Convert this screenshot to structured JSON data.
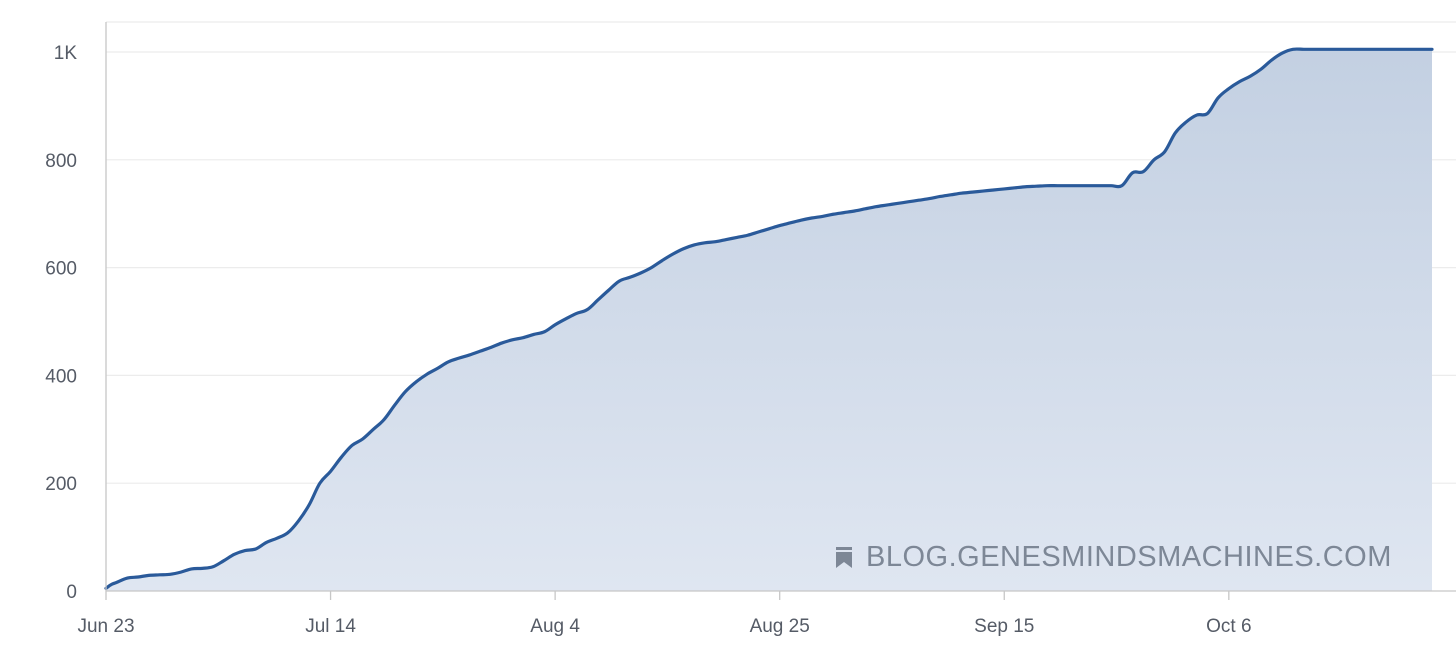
{
  "chart_data": {
    "type": "area",
    "title": "",
    "xlabel": "",
    "ylabel": "",
    "ylim": [
      0,
      1000
    ],
    "y_ticks": [
      0,
      200,
      400,
      600,
      800,
      1000
    ],
    "y_tick_labels": [
      "0",
      "200",
      "400",
      "600",
      "800",
      "1K"
    ],
    "x_ticks": [
      {
        "day": 0,
        "label": "Jun 23"
      },
      {
        "day": 21,
        "label": "Jul 14"
      },
      {
        "day": 42,
        "label": "Aug 4"
      },
      {
        "day": 63,
        "label": "Aug 25"
      },
      {
        "day": 84,
        "label": "Sep 15"
      },
      {
        "day": 105,
        "label": "Oct 6"
      }
    ],
    "xlim": [
      0,
      124
    ],
    "grid": true,
    "colors": {
      "line": "#2a5a9a",
      "fill_top": "#c3d0e2",
      "fill_bottom": "#dfe6f1",
      "grid": "#ececec"
    },
    "series": [
      {
        "x": [
          0,
          0.5,
          1,
          2,
          3,
          4,
          5,
          6,
          7,
          8,
          9,
          10,
          11,
          12,
          13,
          14,
          15,
          16,
          17,
          18,
          19,
          20,
          21,
          22,
          23,
          24,
          25,
          26,
          27,
          28,
          29,
          30,
          31,
          32,
          33,
          34,
          35,
          36,
          37,
          38,
          39,
          40,
          41,
          42,
          43,
          44,
          45,
          46,
          47,
          48,
          49,
          50,
          51,
          52,
          53,
          54,
          55,
          56,
          57,
          58,
          59,
          60,
          61,
          62,
          63,
          64,
          65,
          66,
          67,
          68,
          69,
          70,
          71,
          72,
          73,
          74,
          75,
          76,
          77,
          78,
          79,
          80,
          81,
          82,
          83,
          84,
          85,
          86,
          87,
          88,
          89,
          90,
          91,
          92,
          93,
          94,
          95,
          96,
          97,
          98,
          99,
          100,
          101,
          102,
          103,
          104,
          105,
          106,
          107,
          108,
          109,
          110,
          111,
          112,
          113,
          114,
          115,
          116,
          117,
          118,
          119,
          120,
          121,
          122,
          123,
          124
        ],
        "values": [
          5,
          12,
          16,
          24,
          26,
          29,
          30,
          31,
          35,
          41,
          42,
          45,
          56,
          68,
          75,
          78,
          90,
          98,
          108,
          130,
          160,
          200,
          222,
          248,
          270,
          282,
          300,
          318,
          345,
          370,
          388,
          402,
          413,
          425,
          432,
          438,
          445,
          452,
          460,
          466,
          470,
          476,
          481,
          494,
          505,
          515,
          522,
          540,
          558,
          575,
          582,
          590,
          600,
          613,
          625,
          635,
          642,
          646,
          648,
          652,
          656,
          660,
          666,
          672,
          678,
          683,
          688,
          692,
          695,
          699,
          702,
          705,
          709,
          713,
          716,
          719,
          722,
          725,
          728,
          732,
          735,
          738,
          740,
          742,
          744,
          746,
          748,
          750,
          751,
          752,
          752,
          752,
          752,
          752,
          752,
          752,
          752,
          776,
          778,
          800,
          815,
          850,
          870,
          883,
          886,
          915,
          932,
          945,
          955,
          968,
          985,
          998,
          1005,
          1005,
          1005,
          1005,
          1005,
          1005,
          1005,
          1005,
          1005,
          1005,
          1005,
          1005,
          1005,
          1005
        ]
      }
    ]
  },
  "watermark": {
    "text": "BLOG.GENESMINDSMACHINES.COM",
    "icon": "bookmark-icon"
  }
}
